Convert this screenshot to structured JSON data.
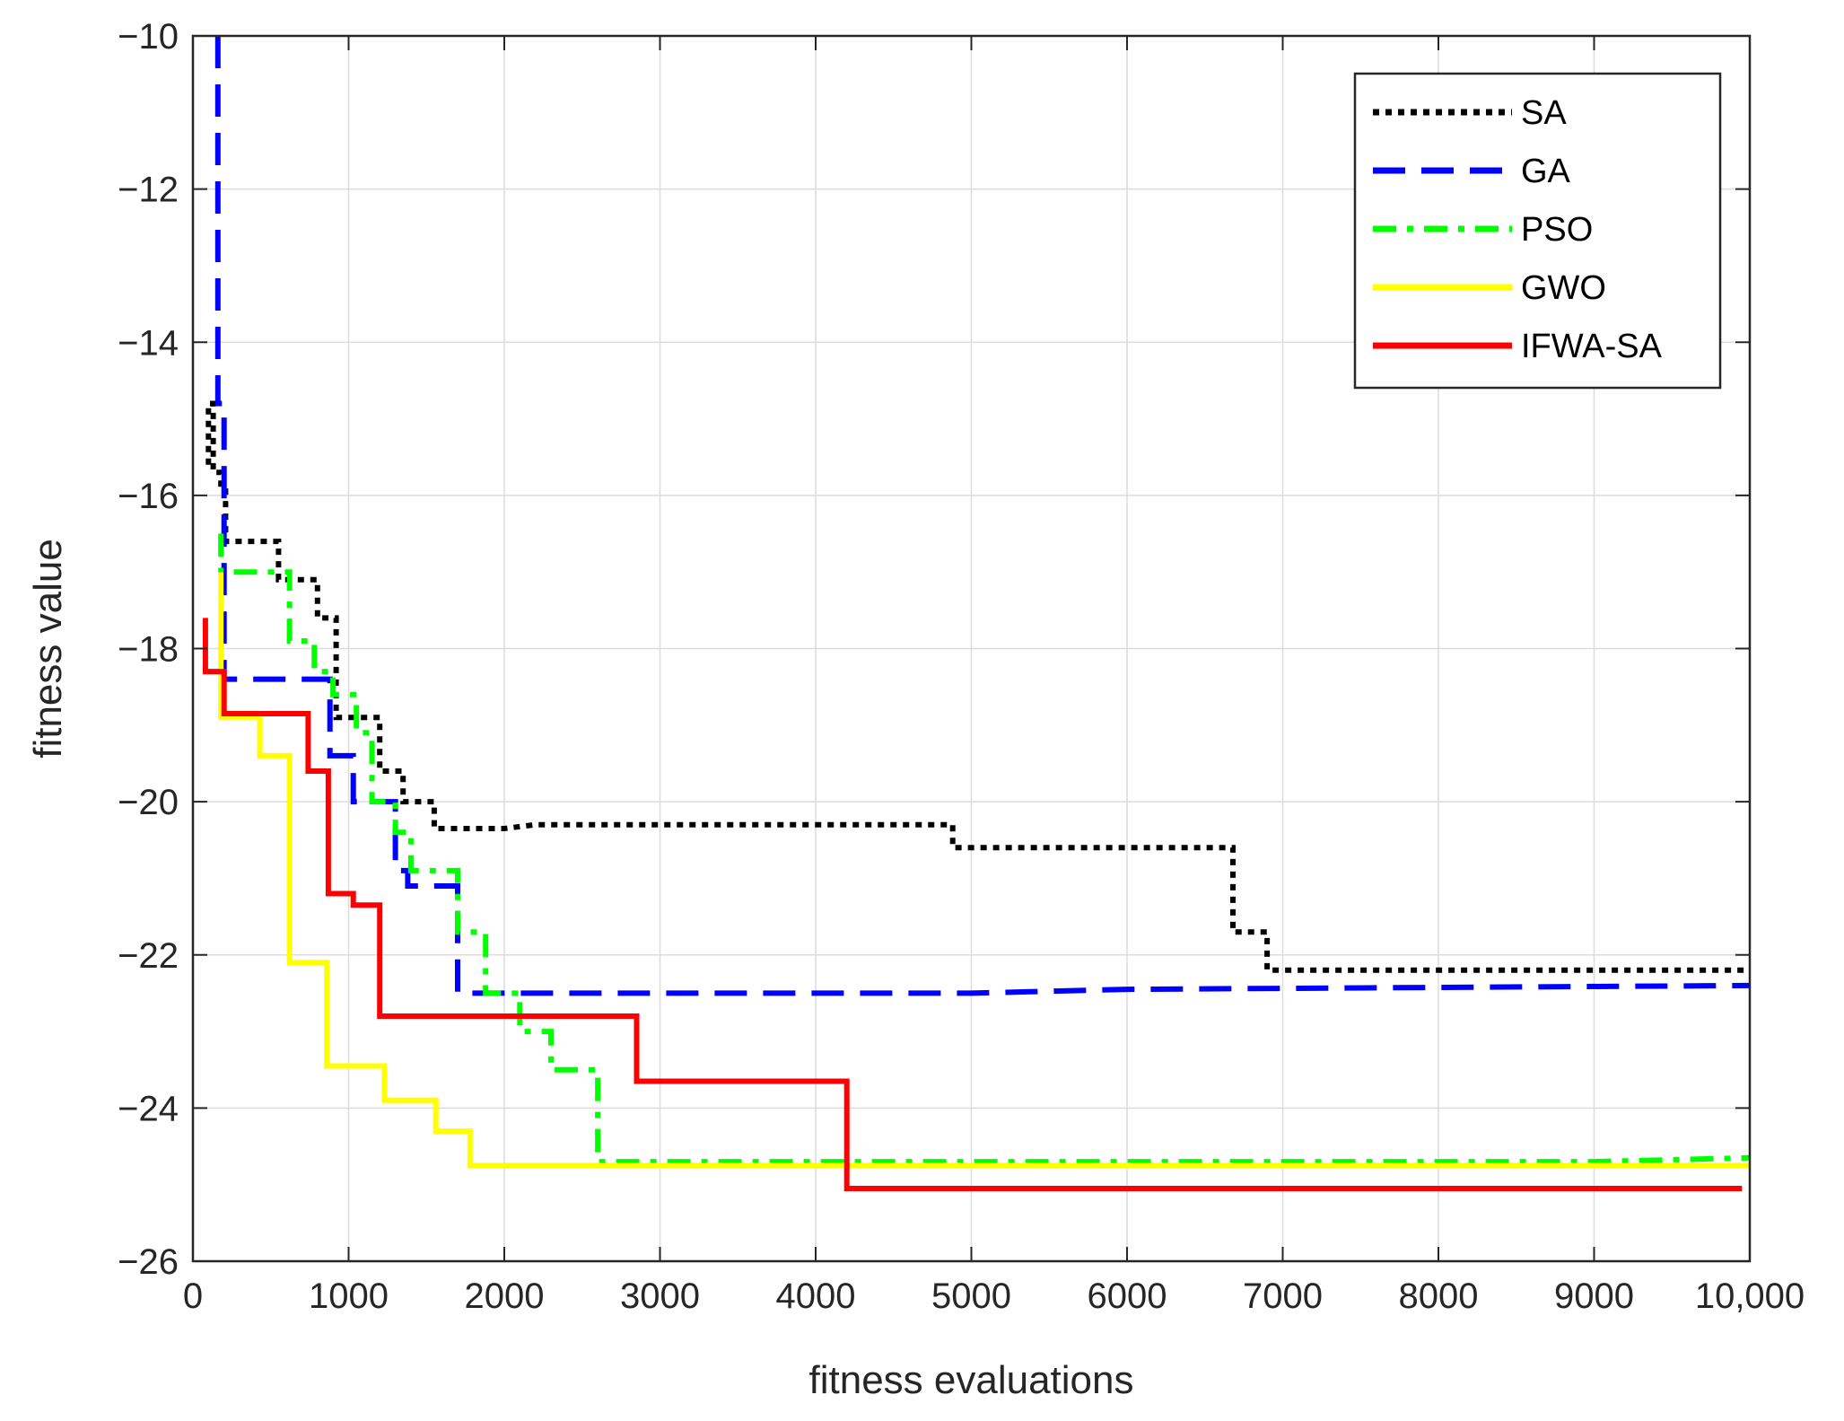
{
  "chart_data": {
    "type": "line",
    "title": "",
    "xlabel": "fitness evaluations",
    "ylabel": "fitness value",
    "xlim": [
      0,
      10000
    ],
    "ylim": [
      -26,
      -10
    ],
    "grid": true,
    "legend_position": "top-right",
    "x_ticks": [
      0,
      1000,
      2000,
      3000,
      4000,
      5000,
      6000,
      7000,
      8000,
      9000,
      10000
    ],
    "x_tick_labels": [
      "0",
      "1000",
      "2000",
      "3000",
      "4000",
      "5000",
      "6000",
      "7000",
      "8000",
      "9000",
      "10,000"
    ],
    "y_ticks": [
      -10,
      -12,
      -14,
      -16,
      -18,
      -20,
      -22,
      -24,
      -26
    ],
    "y_tick_labels": [
      "−10",
      "−12",
      "−14",
      "−16",
      "−18",
      "−20",
      "−22",
      "−24",
      "−26"
    ],
    "series": [
      {
        "name": "SA",
        "color": "#000000",
        "style": "dotted",
        "points": [
          [
            100,
            -15.6
          ],
          [
            100,
            -14.8
          ],
          [
            130,
            -14.8
          ],
          [
            130,
            -15.7
          ],
          [
            180,
            -15.7
          ],
          [
            180,
            -15.9
          ],
          [
            210,
            -15.9
          ],
          [
            210,
            -16.6
          ],
          [
            550,
            -16.6
          ],
          [
            550,
            -17.1
          ],
          [
            800,
            -17.1
          ],
          [
            800,
            -17.6
          ],
          [
            920,
            -17.6
          ],
          [
            920,
            -18.9
          ],
          [
            1200,
            -18.9
          ],
          [
            1200,
            -19.6
          ],
          [
            1350,
            -19.6
          ],
          [
            1350,
            -20.0
          ],
          [
            1550,
            -20.0
          ],
          [
            1550,
            -20.35
          ],
          [
            2000,
            -20.35
          ],
          [
            2200,
            -20.3
          ],
          [
            4880,
            -20.3
          ],
          [
            4880,
            -20.6
          ],
          [
            6680,
            -20.6
          ],
          [
            6680,
            -21.7
          ],
          [
            6900,
            -21.7
          ],
          [
            6900,
            -22.2
          ],
          [
            10000,
            -22.2
          ]
        ]
      },
      {
        "name": "GA",
        "color": "#0000ff",
        "style": "dashed",
        "points": [
          [
            160,
            -10.0
          ],
          [
            160,
            -14.8
          ],
          [
            200,
            -14.8
          ],
          [
            200,
            -18.4
          ],
          [
            880,
            -18.4
          ],
          [
            880,
            -19.4
          ],
          [
            1030,
            -19.4
          ],
          [
            1030,
            -20.0
          ],
          [
            1300,
            -20.0
          ],
          [
            1300,
            -20.9
          ],
          [
            1380,
            -20.9
          ],
          [
            1380,
            -21.1
          ],
          [
            1700,
            -21.1
          ],
          [
            1700,
            -22.5
          ],
          [
            5000,
            -22.5
          ],
          [
            6000,
            -22.45
          ],
          [
            10000,
            -22.4
          ]
        ]
      },
      {
        "name": "PSO",
        "color": "#00ff00",
        "style": "dashdot",
        "points": [
          [
            180,
            -16.5
          ],
          [
            180,
            -17.0
          ],
          [
            620,
            -17.0
          ],
          [
            620,
            -17.9
          ],
          [
            780,
            -17.9
          ],
          [
            780,
            -18.3
          ],
          [
            900,
            -18.3
          ],
          [
            900,
            -18.6
          ],
          [
            1050,
            -18.6
          ],
          [
            1050,
            -19.1
          ],
          [
            1150,
            -19.1
          ],
          [
            1150,
            -20.0
          ],
          [
            1300,
            -20.0
          ],
          [
            1300,
            -20.4
          ],
          [
            1400,
            -20.4
          ],
          [
            1400,
            -20.9
          ],
          [
            1700,
            -20.9
          ],
          [
            1700,
            -21.7
          ],
          [
            1880,
            -21.7
          ],
          [
            1880,
            -22.5
          ],
          [
            2100,
            -22.5
          ],
          [
            2100,
            -23.0
          ],
          [
            2300,
            -23.0
          ],
          [
            2300,
            -23.5
          ],
          [
            2600,
            -23.5
          ],
          [
            2600,
            -24.7
          ],
          [
            9000,
            -24.7
          ],
          [
            10000,
            -24.65
          ]
        ]
      },
      {
        "name": "GWO",
        "color": "#ffff00",
        "style": "solid",
        "points": [
          [
            180,
            -17.0
          ],
          [
            180,
            -18.9
          ],
          [
            430,
            -18.9
          ],
          [
            430,
            -19.4
          ],
          [
            620,
            -19.4
          ],
          [
            620,
            -22.1
          ],
          [
            860,
            -22.1
          ],
          [
            860,
            -23.45
          ],
          [
            1230,
            -23.45
          ],
          [
            1230,
            -23.9
          ],
          [
            1560,
            -23.9
          ],
          [
            1560,
            -24.3
          ],
          [
            1780,
            -24.3
          ],
          [
            1780,
            -24.75
          ],
          [
            10000,
            -24.75
          ]
        ]
      },
      {
        "name": "IFWA-SA",
        "color": "#ff0000",
        "style": "solid",
        "points": [
          [
            80,
            -17.6
          ],
          [
            80,
            -18.3
          ],
          [
            200,
            -18.3
          ],
          [
            200,
            -18.85
          ],
          [
            740,
            -18.85
          ],
          [
            740,
            -19.6
          ],
          [
            870,
            -19.6
          ],
          [
            870,
            -21.2
          ],
          [
            1030,
            -21.2
          ],
          [
            1030,
            -21.35
          ],
          [
            1200,
            -21.35
          ],
          [
            1200,
            -22.8
          ],
          [
            2850,
            -22.8
          ],
          [
            2850,
            -23.65
          ],
          [
            4200,
            -23.65
          ],
          [
            4200,
            -25.05
          ],
          [
            9950,
            -25.05
          ]
        ]
      }
    ]
  }
}
